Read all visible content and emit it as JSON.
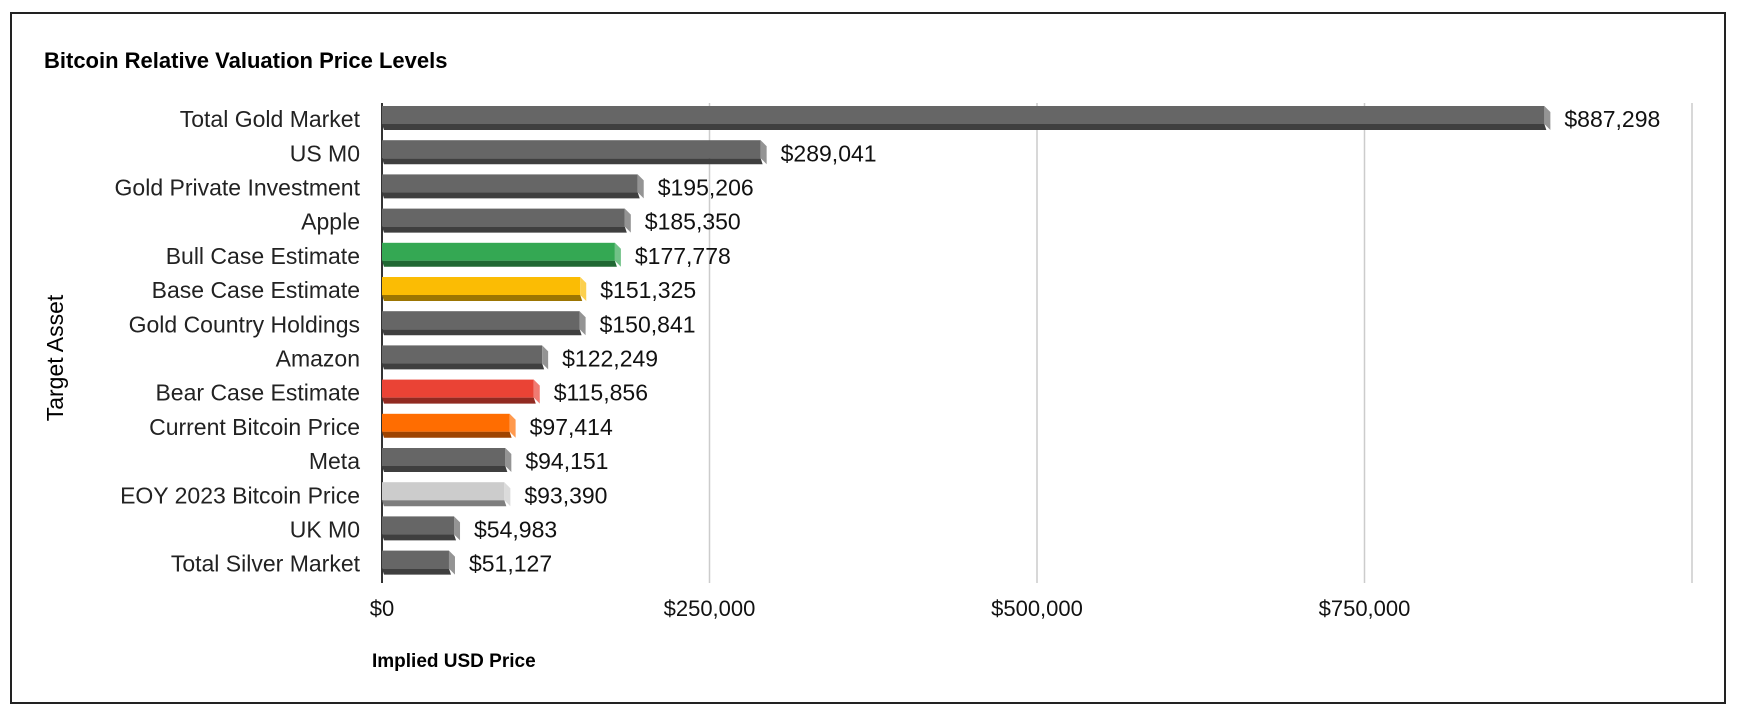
{
  "chart_data": {
    "type": "bar",
    "orientation": "horizontal",
    "title": "Bitcoin Relative Valuation Price Levels",
    "xlabel": "Implied USD Price",
    "ylabel": "Target Asset",
    "xlim": [
      0,
      1000000
    ],
    "x_ticks": [
      {
        "value": 0,
        "label": "$0"
      },
      {
        "value": 250000,
        "label": "$250,000"
      },
      {
        "value": 500000,
        "label": "$500,000"
      },
      {
        "value": 750000,
        "label": "$750,000"
      }
    ],
    "grid": true,
    "categories": [
      "Total Gold Market",
      "US M0",
      "Gold Private Investment",
      "Apple",
      "Bull Case Estimate",
      "Base Case Estimate",
      "Gold Country Holdings",
      "Amazon",
      "Bear Case Estimate",
      "Current Bitcoin Price",
      "Meta",
      "EOY 2023 Bitcoin Price",
      "UK M0",
      "Total Silver Market"
    ],
    "values": [
      887298,
      289041,
      195206,
      185350,
      177778,
      151325,
      150841,
      122249,
      115856,
      97414,
      94151,
      93390,
      54983,
      51127
    ],
    "data_labels": [
      "$887,298",
      "$289,041",
      "$195,206",
      "$185,350",
      "$177,778",
      "$151,325",
      "$150,841",
      "$122,249",
      "$115,856",
      "$97,414",
      "$94,151",
      "$93,390",
      "$54,983",
      "$51,127"
    ],
    "colors": [
      "#666666",
      "#666666",
      "#666666",
      "#666666",
      "#34a853",
      "#fbbc04",
      "#666666",
      "#666666",
      "#ea4335",
      "#ff6d01",
      "#666666",
      "#cccccc",
      "#666666",
      "#666666"
    ]
  }
}
